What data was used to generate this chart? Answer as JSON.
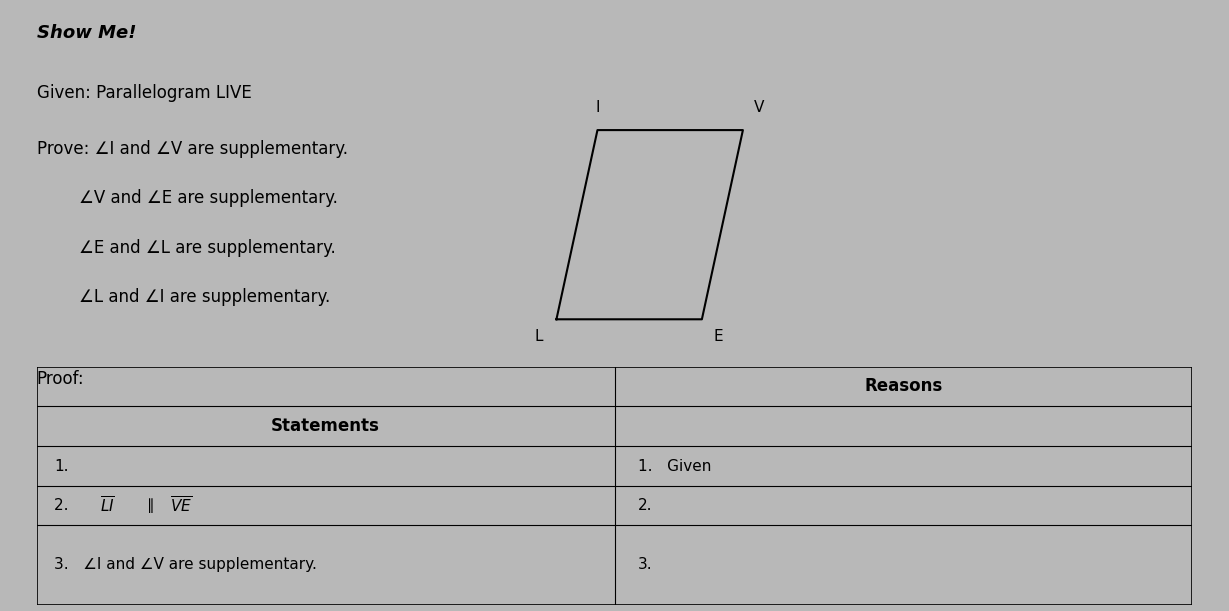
{
  "background_color": "#b8b8b8",
  "title": "Show Me!",
  "given_text": "Given: Parallelogram LIVE",
  "prove_line1": "Prove: ∠I and ∠V are supplementary.",
  "prove_line2": "        ∠V and ∠E are supplementary.",
  "prove_line3": "        ∠E and ∠L are supplementary.",
  "prove_line4": "        ∠L and ∠I are supplementary.",
  "proof_label": "Proof:",
  "para_L": [
    0.0,
    0.0
  ],
  "para_I": [
    0.22,
    1.0
  ],
  "para_V": [
    1.0,
    1.0
  ],
  "para_E": [
    0.78,
    0.0
  ],
  "statements_header": "Statements",
  "reasons_header": "Reasons",
  "row1_stmt": "1.",
  "row1_rsn": "1.   Given",
  "row2_stmt": "2.",
  "row2_rsn": "2.",
  "row3_stmt": "3.   ∠I and ∠V are supplementary.",
  "row3_rsn": "3.",
  "col_split": 0.5
}
